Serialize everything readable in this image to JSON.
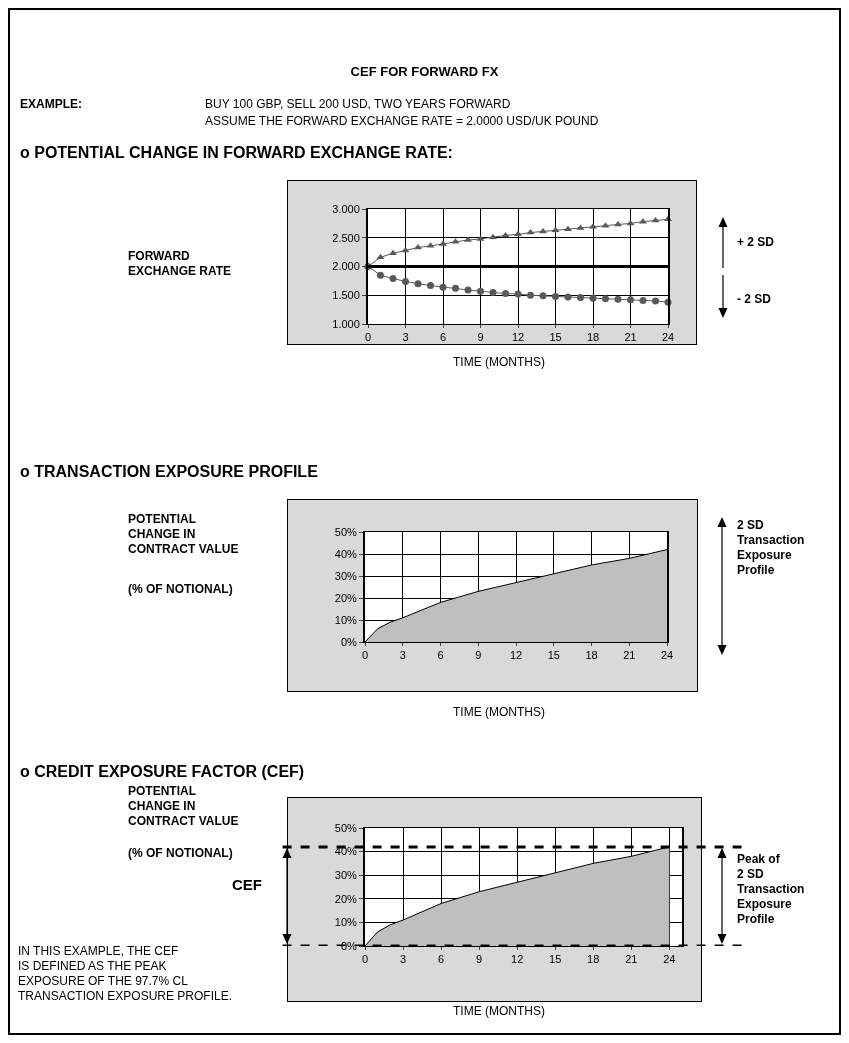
{
  "chart_data": [
    {
      "type": "line",
      "title": "CEF FOR FORWARD FX",
      "subtitle": "o POTENTIAL CHANGE IN FORWARD EXCHANGE RATE:",
      "ylabel": "FORWARD\nEXCHANGE RATE",
      "xlabel": "TIME (MONTHS)",
      "annotations": [
        "EXAMPLE:",
        "BUY 100 GBP, SELL 200 USD, TWO YEARS FORWARD",
        "ASSUME THE FORWARD EXCHANGE RATE = 2.0000 USD/UK POUND",
        "+ 2 SD",
        "- 2 SD"
      ],
      "x": [
        0,
        1,
        2,
        3,
        4,
        5,
        6,
        7,
        8,
        9,
        10,
        11,
        12,
        13,
        14,
        15,
        16,
        17,
        18,
        19,
        20,
        21,
        22,
        23,
        24
      ],
      "series": [
        {
          "color": "#595959",
          "marker": "circle",
          "values": [
            2.0,
            1.85,
            1.79,
            1.74,
            1.7,
            1.67,
            1.64,
            1.62,
            1.59,
            1.57,
            1.55,
            1.53,
            1.52,
            1.5,
            1.49,
            1.48,
            1.47,
            1.46,
            1.45,
            1.44,
            1.43,
            1.42,
            1.41,
            1.4,
            1.38
          ]
        },
        {
          "color": "#595959",
          "marker": "triangle",
          "values": [
            2.0,
            2.16,
            2.23,
            2.28,
            2.33,
            2.36,
            2.39,
            2.43,
            2.46,
            2.48,
            2.51,
            2.54,
            2.56,
            2.59,
            2.61,
            2.63,
            2.65,
            2.67,
            2.69,
            2.71,
            2.73,
            2.75,
            2.78,
            2.8,
            2.82
          ]
        }
      ],
      "ref_lines": [
        {
          "axis": "y",
          "value": 2,
          "color": "#000000",
          "line_style": "solid"
        }
      ],
      "xlim": [
        0,
        24
      ],
      "xticks": [
        0,
        3,
        6,
        9,
        12,
        15,
        18,
        21,
        24
      ],
      "ylim": [
        1,
        3
      ],
      "yticks": [
        {
          "value": 1,
          "label": "1.000"
        },
        {
          "value": 1.5,
          "label": "1.500"
        },
        {
          "value": 2,
          "label": "2.000"
        },
        {
          "value": 2.5,
          "label": "2.500"
        },
        {
          "value": 3,
          "label": "3.000"
        }
      ],
      "grid": true
    },
    {
      "type": "area",
      "title": "o TRANSACTION EXPOSURE PROFILE",
      "ylabel": "POTENTIAL\nCHANGE IN\nCONTRACT VALUE",
      "xlabel": "TIME (MONTHS)",
      "annotations": [
        "(% OF NOTIONAL)",
        "2 SD\nTransaction\nExposure\nProfile"
      ],
      "x": [
        0,
        1,
        2,
        3,
        6,
        9,
        12,
        15,
        18,
        21,
        24
      ],
      "series": [
        {
          "color": "#bfbfbf",
          "values": [
            0,
            6,
            9,
            11,
            18,
            23,
            27,
            31,
            35,
            38,
            42
          ]
        }
      ],
      "xlim": [
        0,
        24
      ],
      "xticks": [
        0,
        3,
        6,
        9,
        12,
        15,
        18,
        21,
        24
      ],
      "ylim": [
        0,
        50
      ],
      "yticks": [
        {
          "value": 0,
          "label": "0%"
        },
        {
          "value": 10,
          "label": "10%"
        },
        {
          "value": 20,
          "label": "20%"
        },
        {
          "value": 30,
          "label": "30%"
        },
        {
          "value": 40,
          "label": "40%"
        },
        {
          "value": 50,
          "label": "50%"
        }
      ],
      "grid": true
    },
    {
      "type": "area",
      "title": "o CREDIT EXPOSURE FACTOR (CEF)",
      "ylabel": "POTENTIAL\nCHANGE IN\nCONTRACT VALUE",
      "xlabel": "TIME (MONTHS)",
      "annotations": [
        "(% OF NOTIONAL)",
        "CEF",
        "Peak of\n2 SD\nTransaction\nExposure\nProfile",
        "IN THIS EXAMPLE, THE CEF\nIS DEFINED AS THE PEAK\nEXPOSURE OF THE 97.7% CL\nTRANSACTION EXPOSURE PROFILE."
      ],
      "x": [
        0,
        1,
        2,
        3,
        6,
        9,
        12,
        15,
        18,
        21,
        24
      ],
      "series": [
        {
          "color": "#bfbfbf",
          "values": [
            0,
            6,
            9,
            11,
            18,
            23,
            27,
            31,
            35,
            38,
            42
          ]
        }
      ],
      "ref_lines": [
        {
          "axis": "y",
          "value": 42,
          "color": "#000000",
          "line_style": "dashed"
        },
        {
          "axis": "y",
          "value": 0,
          "color": "#000000",
          "line_style": "dashed"
        }
      ],
      "xlim": [
        0,
        25
      ],
      "xticks": [
        0,
        3,
        6,
        9,
        12,
        15,
        18,
        21,
        24
      ],
      "ylim": [
        0,
        50
      ],
      "yticks": [
        {
          "value": 0,
          "label": "0%"
        },
        {
          "value": 10,
          "label": "10%"
        },
        {
          "value": 20,
          "label": "20%"
        },
        {
          "value": 30,
          "label": "30%"
        },
        {
          "value": 40,
          "label": "40%"
        },
        {
          "value": 50,
          "label": "50%"
        }
      ],
      "grid": true
    }
  ]
}
